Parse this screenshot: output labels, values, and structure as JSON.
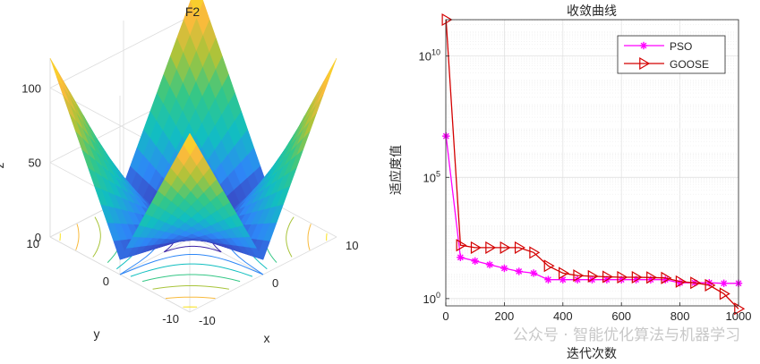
{
  "chart_data": [
    {
      "type": "surface3d",
      "title": "F2",
      "xlabel": "x",
      "ylabel": "y",
      "zlabel": "z",
      "x_ticks": [
        "-10",
        "0",
        "10"
      ],
      "y_ticks": [
        "-10",
        "0",
        "10"
      ],
      "z_ticks": [
        "0",
        "50",
        "100"
      ],
      "xlim": [
        -10,
        10
      ],
      "ylim": [
        -10,
        10
      ],
      "zlim": [
        0,
        120
      ],
      "function": "sum(|x_i|) + prod(|x_i|)",
      "colormap": "parula",
      "colormap_stops": [
        "#3e26a8",
        "#2e87f7",
        "#11bfc0",
        "#35c786",
        "#a8c43a",
        "#f8ba3c",
        "#f9e11e"
      ],
      "base_contours": true
    },
    {
      "type": "line",
      "title": "收敛曲线",
      "xlabel": "迭代次数",
      "ylabel": "适应度值",
      "yscale": "log",
      "xlim": [
        0,
        1000
      ],
      "ylim_log10": [
        -0.3,
        11.5
      ],
      "x_ticks": [
        "0",
        "200",
        "400",
        "600",
        "800",
        "1000"
      ],
      "y_ticks": [
        {
          "base": "10",
          "exp": "0",
          "log": 0
        },
        {
          "base": "10",
          "exp": "5",
          "log": 5
        },
        {
          "base": "10",
          "exp": "10",
          "log": 10
        }
      ],
      "grid": true,
      "legend_position": "top-right",
      "series": [
        {
          "name": "PSO",
          "color": "#ff00ff",
          "marker": "asterisk",
          "x": [
            1,
            50,
            100,
            150,
            200,
            250,
            300,
            350,
            400,
            450,
            500,
            550,
            600,
            650,
            700,
            750,
            800,
            850,
            900,
            950,
            1000
          ],
          "log10_y": [
            6.7,
            1.7,
            1.55,
            1.4,
            1.25,
            1.12,
            1.05,
            0.78,
            0.78,
            0.78,
            0.78,
            0.78,
            0.78,
            0.78,
            0.78,
            0.78,
            0.65,
            0.65,
            0.65,
            0.63,
            0.63
          ]
        },
        {
          "name": "GOOSE",
          "color": "#d40000",
          "marker": "triangle-right",
          "x": [
            1,
            50,
            100,
            150,
            200,
            250,
            300,
            350,
            400,
            450,
            500,
            550,
            600,
            650,
            700,
            750,
            800,
            850,
            900,
            950,
            1000
          ],
          "log10_y": [
            11.5,
            2.2,
            2.1,
            2.1,
            2.1,
            2.1,
            1.9,
            1.35,
            1.05,
            0.95,
            0.92,
            0.9,
            0.88,
            0.88,
            0.87,
            0.85,
            0.7,
            0.65,
            0.55,
            0.2,
            -0.42
          ]
        }
      ]
    }
  ],
  "watermark": "公众号 · 智能优化算法与机器学习"
}
